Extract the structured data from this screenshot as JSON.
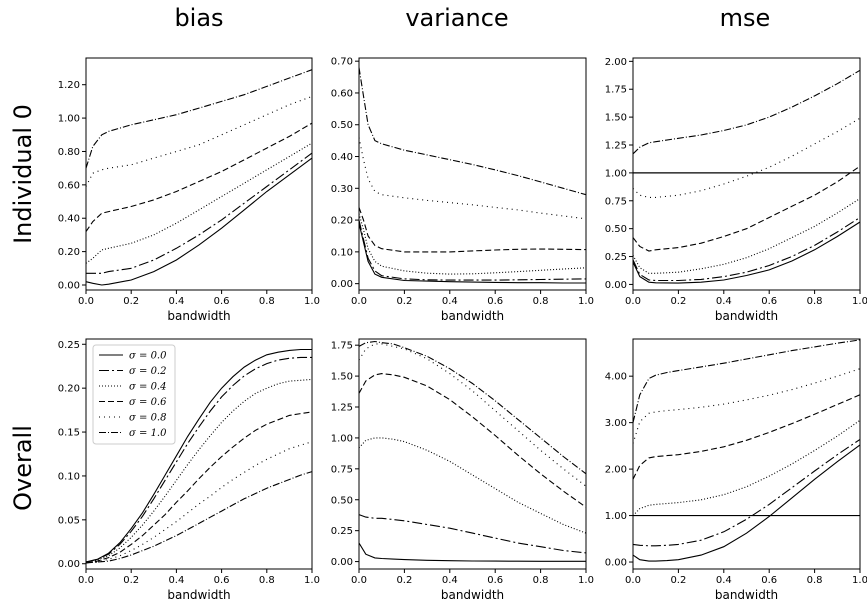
{
  "column_titles": [
    "bias",
    "variance",
    "mse"
  ],
  "row_titles": [
    "Individual 0",
    "Overall"
  ],
  "chart_data": [
    {
      "id": "individual-bias",
      "type": "line",
      "xlabel": "bandwidth",
      "xlim": [
        0,
        1
      ],
      "ylim": [
        -0.03,
        1.36
      ],
      "xticks": [
        "0.0",
        "0.2",
        "0.4",
        "0.6",
        "0.8",
        "1.0"
      ],
      "yticks": [
        "0.00",
        "0.20",
        "0.40",
        "0.60",
        "0.80",
        "1.00",
        "1.20"
      ],
      "x": [
        0,
        0.03,
        0.07,
        0.1,
        0.2,
        0.3,
        0.4,
        0.5,
        0.6,
        0.7,
        0.8,
        0.9,
        1.0
      ],
      "series": [
        {
          "name": "σ = 0.0",
          "values": [
            0.02,
            0.01,
            0.0,
            0.005,
            0.03,
            0.08,
            0.15,
            0.24,
            0.34,
            0.45,
            0.56,
            0.66,
            0.76
          ]
        },
        {
          "name": "σ = 0.2",
          "values": [
            0.07,
            0.07,
            0.07,
            0.08,
            0.1,
            0.15,
            0.22,
            0.3,
            0.39,
            0.49,
            0.59,
            0.69,
            0.79
          ]
        },
        {
          "name": "σ = 0.4",
          "values": [
            0.13,
            0.16,
            0.21,
            0.22,
            0.25,
            0.3,
            0.37,
            0.45,
            0.53,
            0.61,
            0.69,
            0.77,
            0.85
          ]
        },
        {
          "name": "σ = 0.6",
          "values": [
            0.32,
            0.38,
            0.43,
            0.44,
            0.47,
            0.51,
            0.56,
            0.62,
            0.68,
            0.75,
            0.82,
            0.89,
            0.97
          ]
        },
        {
          "name": "σ = 0.8",
          "values": [
            0.59,
            0.67,
            0.69,
            0.7,
            0.72,
            0.76,
            0.8,
            0.84,
            0.9,
            0.96,
            1.02,
            1.08,
            1.13
          ]
        },
        {
          "name": "σ = 1.0",
          "values": [
            0.7,
            0.83,
            0.9,
            0.92,
            0.96,
            0.99,
            1.02,
            1.06,
            1.1,
            1.14,
            1.19,
            1.24,
            1.29
          ]
        }
      ]
    },
    {
      "id": "individual-variance",
      "type": "line",
      "xlabel": "bandwidth",
      "xlim": [
        0,
        1
      ],
      "ylim": [
        -0.02,
        0.71
      ],
      "xticks": [
        "0.0",
        "0.2",
        "0.4",
        "0.6",
        "0.8",
        "1.0"
      ],
      "yticks": [
        "0.00",
        "0.10",
        "0.20",
        "0.30",
        "0.40",
        "0.50",
        "0.60",
        "0.70"
      ],
      "x": [
        0,
        0.02,
        0.04,
        0.07,
        0.1,
        0.2,
        0.3,
        0.4,
        0.5,
        0.6,
        0.7,
        0.8,
        0.9,
        1.0
      ],
      "series": [
        {
          "name": "σ = 0.0",
          "values": [
            0.19,
            0.13,
            0.07,
            0.03,
            0.02,
            0.01,
            0.008,
            0.006,
            0.005,
            0.004,
            0.003,
            0.003,
            0.002,
            0.002
          ]
        },
        {
          "name": "σ = 0.2",
          "values": [
            0.2,
            0.14,
            0.08,
            0.04,
            0.025,
            0.015,
            0.012,
            0.011,
            0.011,
            0.011,
            0.012,
            0.013,
            0.014,
            0.015
          ]
        },
        {
          "name": "σ = 0.4",
          "values": [
            0.22,
            0.17,
            0.11,
            0.07,
            0.055,
            0.04,
            0.033,
            0.03,
            0.031,
            0.034,
            0.038,
            0.042,
            0.046,
            0.05
          ]
        },
        {
          "name": "σ = 0.6",
          "values": [
            0.24,
            0.2,
            0.15,
            0.12,
            0.11,
            0.1,
            0.1,
            0.1,
            0.103,
            0.106,
            0.108,
            0.109,
            0.108,
            0.107
          ]
        },
        {
          "name": "σ = 0.8",
          "values": [
            0.46,
            0.39,
            0.33,
            0.29,
            0.28,
            0.27,
            0.262,
            0.255,
            0.248,
            0.24,
            0.232,
            0.222,
            0.213,
            0.204
          ]
        },
        {
          "name": "σ = 1.0",
          "values": [
            0.68,
            0.59,
            0.5,
            0.45,
            0.44,
            0.42,
            0.405,
            0.39,
            0.375,
            0.358,
            0.34,
            0.32,
            0.3,
            0.28
          ]
        }
      ]
    },
    {
      "id": "individual-mse",
      "type": "line",
      "xlabel": "bandwidth",
      "xlim": [
        0,
        1
      ],
      "ylim": [
        -0.05,
        2.03
      ],
      "xticks": [
        "0.0",
        "0.2",
        "0.4",
        "0.6",
        "0.8",
        "1.0"
      ],
      "yticks": [
        "0.00",
        "0.25",
        "0.50",
        "0.75",
        "1.00",
        "1.25",
        "1.50",
        "1.75",
        "2.00"
      ],
      "hline": 1.0,
      "x": [
        0,
        0.03,
        0.07,
        0.1,
        0.2,
        0.3,
        0.4,
        0.5,
        0.6,
        0.7,
        0.8,
        0.9,
        1.0
      ],
      "series": [
        {
          "name": "σ = 0.0",
          "values": [
            0.2,
            0.07,
            0.02,
            0.015,
            0.012,
            0.02,
            0.04,
            0.08,
            0.13,
            0.21,
            0.31,
            0.43,
            0.56
          ]
        },
        {
          "name": "σ = 0.2",
          "values": [
            0.22,
            0.09,
            0.04,
            0.035,
            0.035,
            0.045,
            0.07,
            0.11,
            0.17,
            0.25,
            0.35,
            0.47,
            0.6
          ]
        },
        {
          "name": "σ = 0.4",
          "values": [
            0.26,
            0.15,
            0.1,
            0.1,
            0.11,
            0.14,
            0.18,
            0.24,
            0.32,
            0.42,
            0.52,
            0.64,
            0.77
          ]
        },
        {
          "name": "σ = 0.6",
          "values": [
            0.42,
            0.34,
            0.3,
            0.31,
            0.33,
            0.37,
            0.43,
            0.5,
            0.6,
            0.7,
            0.8,
            0.92,
            1.06
          ]
        },
        {
          "name": "σ = 0.8",
          "values": [
            0.86,
            0.8,
            0.78,
            0.78,
            0.8,
            0.84,
            0.9,
            0.97,
            1.05,
            1.15,
            1.26,
            1.37,
            1.49
          ]
        },
        {
          "name": "σ = 1.0",
          "values": [
            1.17,
            1.23,
            1.27,
            1.28,
            1.31,
            1.34,
            1.38,
            1.43,
            1.5,
            1.59,
            1.69,
            1.8,
            1.92
          ]
        }
      ]
    },
    {
      "id": "overall-bias",
      "type": "line",
      "xlabel": "bandwidth",
      "xlim": [
        0,
        1
      ],
      "ylim": [
        -0.006,
        0.256
      ],
      "xticks": [
        "0.0",
        "0.2",
        "0.4",
        "0.6",
        "0.8",
        "1.0"
      ],
      "yticks": [
        "0.00",
        "0.05",
        "0.10",
        "0.15",
        "0.20",
        "0.25"
      ],
      "legend": {
        "placement": "upper-left",
        "entries": [
          "σ = 0.0",
          "σ = 0.2",
          "σ = 0.4",
          "σ = 0.6",
          "σ = 0.8",
          "σ = 1.0"
        ]
      },
      "x": [
        0,
        0.05,
        0.1,
        0.15,
        0.2,
        0.25,
        0.3,
        0.35,
        0.4,
        0.45,
        0.5,
        0.55,
        0.6,
        0.65,
        0.7,
        0.75,
        0.8,
        0.85,
        0.9,
        0.95,
        1.0
      ],
      "series": [
        {
          "name": "σ = 0.0",
          "values": [
            0.002,
            0.005,
            0.012,
            0.024,
            0.04,
            0.058,
            0.079,
            0.101,
            0.123,
            0.145,
            0.165,
            0.184,
            0.2,
            0.213,
            0.224,
            0.232,
            0.238,
            0.241,
            0.243,
            0.244,
            0.244
          ]
        },
        {
          "name": "σ = 0.2",
          "values": [
            0.002,
            0.005,
            0.011,
            0.022,
            0.037,
            0.054,
            0.074,
            0.095,
            0.116,
            0.137,
            0.156,
            0.174,
            0.19,
            0.203,
            0.214,
            0.222,
            0.228,
            0.232,
            0.234,
            0.235,
            0.235
          ]
        },
        {
          "name": "σ = 0.4",
          "values": [
            0.002,
            0.004,
            0.009,
            0.018,
            0.03,
            0.044,
            0.06,
            0.077,
            0.095,
            0.113,
            0.13,
            0.146,
            0.161,
            0.174,
            0.185,
            0.194,
            0.2,
            0.205,
            0.208,
            0.209,
            0.21
          ]
        },
        {
          "name": "σ = 0.6",
          "values": [
            0.001,
            0.003,
            0.007,
            0.013,
            0.022,
            0.032,
            0.044,
            0.056,
            0.07,
            0.083,
            0.097,
            0.11,
            0.122,
            0.133,
            0.143,
            0.152,
            0.159,
            0.164,
            0.169,
            0.171,
            0.173
          ]
        },
        {
          "name": "σ = 0.8",
          "values": [
            0.001,
            0.002,
            0.005,
            0.009,
            0.015,
            0.022,
            0.03,
            0.039,
            0.048,
            0.058,
            0.068,
            0.077,
            0.087,
            0.096,
            0.104,
            0.112,
            0.119,
            0.125,
            0.131,
            0.135,
            0.139
          ]
        },
        {
          "name": "σ = 1.0",
          "values": [
            0.001,
            0.002,
            0.003,
            0.006,
            0.01,
            0.015,
            0.02,
            0.026,
            0.032,
            0.039,
            0.046,
            0.053,
            0.06,
            0.067,
            0.074,
            0.08,
            0.086,
            0.091,
            0.096,
            0.101,
            0.105
          ]
        }
      ]
    },
    {
      "id": "overall-variance",
      "type": "line",
      "xlabel": "bandwidth",
      "xlim": [
        0,
        1
      ],
      "ylim": [
        -0.06,
        1.8
      ],
      "xticks": [
        "0.0",
        "0.2",
        "0.4",
        "0.6",
        "0.8",
        "1.0"
      ],
      "yticks": [
        "0.00",
        "0.25",
        "0.50",
        "0.75",
        "1.00",
        "1.25",
        "1.50",
        "1.75"
      ],
      "x": [
        0,
        0.03,
        0.07,
        0.1,
        0.15,
        0.2,
        0.3,
        0.4,
        0.5,
        0.6,
        0.7,
        0.8,
        0.9,
        1.0
      ],
      "series": [
        {
          "name": "σ = 0.0",
          "values": [
            0.15,
            0.06,
            0.03,
            0.025,
            0.02,
            0.016,
            0.01,
            0.007,
            0.005,
            0.004,
            0.003,
            0.002,
            0.002,
            0.002
          ]
        },
        {
          "name": "σ = 0.2",
          "values": [
            0.38,
            0.36,
            0.35,
            0.35,
            0.34,
            0.33,
            0.3,
            0.27,
            0.23,
            0.19,
            0.15,
            0.12,
            0.09,
            0.07
          ]
        },
        {
          "name": "σ = 0.4",
          "values": [
            0.92,
            0.98,
            1.0,
            1.0,
            0.99,
            0.97,
            0.9,
            0.81,
            0.7,
            0.59,
            0.48,
            0.39,
            0.3,
            0.23
          ]
        },
        {
          "name": "σ = 0.6",
          "values": [
            1.36,
            1.46,
            1.51,
            1.52,
            1.51,
            1.49,
            1.42,
            1.31,
            1.17,
            1.02,
            0.86,
            0.71,
            0.57,
            0.44
          ]
        },
        {
          "name": "σ = 0.8",
          "values": [
            1.63,
            1.72,
            1.76,
            1.76,
            1.74,
            1.72,
            1.64,
            1.52,
            1.38,
            1.22,
            1.06,
            0.9,
            0.75,
            0.61
          ]
        },
        {
          "name": "σ = 1.0",
          "values": [
            1.74,
            1.77,
            1.78,
            1.77,
            1.76,
            1.73,
            1.66,
            1.56,
            1.44,
            1.3,
            1.15,
            1.0,
            0.85,
            0.71
          ]
        }
      ]
    },
    {
      "id": "overall-mse",
      "type": "line",
      "xlabel": "bandwidth",
      "xlim": [
        0,
        1
      ],
      "ylim": [
        -0.15,
        4.8
      ],
      "xticks": [
        "0.0",
        "0.2",
        "0.4",
        "0.6",
        "0.8",
        "1.0"
      ],
      "yticks": [
        "0.00",
        "1.00",
        "2.00",
        "3.00",
        "4.00"
      ],
      "hline": 1.0,
      "x": [
        0,
        0.03,
        0.07,
        0.1,
        0.15,
        0.2,
        0.3,
        0.4,
        0.5,
        0.6,
        0.7,
        0.8,
        0.9,
        1.0
      ],
      "series": [
        {
          "name": "σ = 0.0",
          "values": [
            0.15,
            0.05,
            0.02,
            0.02,
            0.03,
            0.05,
            0.15,
            0.33,
            0.62,
            0.98,
            1.38,
            1.78,
            2.16,
            2.52
          ]
        },
        {
          "name": "σ = 0.2",
          "values": [
            0.38,
            0.36,
            0.35,
            0.35,
            0.36,
            0.38,
            0.47,
            0.65,
            0.92,
            1.24,
            1.6,
            1.96,
            2.31,
            2.64
          ]
        },
        {
          "name": "σ = 0.4",
          "values": [
            1.0,
            1.15,
            1.22,
            1.24,
            1.26,
            1.28,
            1.34,
            1.45,
            1.62,
            1.85,
            2.11,
            2.4,
            2.71,
            3.05
          ]
        },
        {
          "name": "σ = 0.6",
          "values": [
            1.78,
            2.08,
            2.24,
            2.27,
            2.29,
            2.31,
            2.38,
            2.48,
            2.62,
            2.79,
            2.98,
            3.18,
            3.39,
            3.6
          ]
        },
        {
          "name": "σ = 0.8",
          "values": [
            2.55,
            3.02,
            3.2,
            3.23,
            3.26,
            3.28,
            3.33,
            3.4,
            3.49,
            3.59,
            3.71,
            3.85,
            4.0,
            4.16
          ]
        },
        {
          "name": "σ = 1.0",
          "values": [
            3.0,
            3.6,
            3.95,
            4.02,
            4.08,
            4.12,
            4.2,
            4.28,
            4.37,
            4.46,
            4.55,
            4.63,
            4.71,
            4.78
          ]
        }
      ]
    }
  ]
}
